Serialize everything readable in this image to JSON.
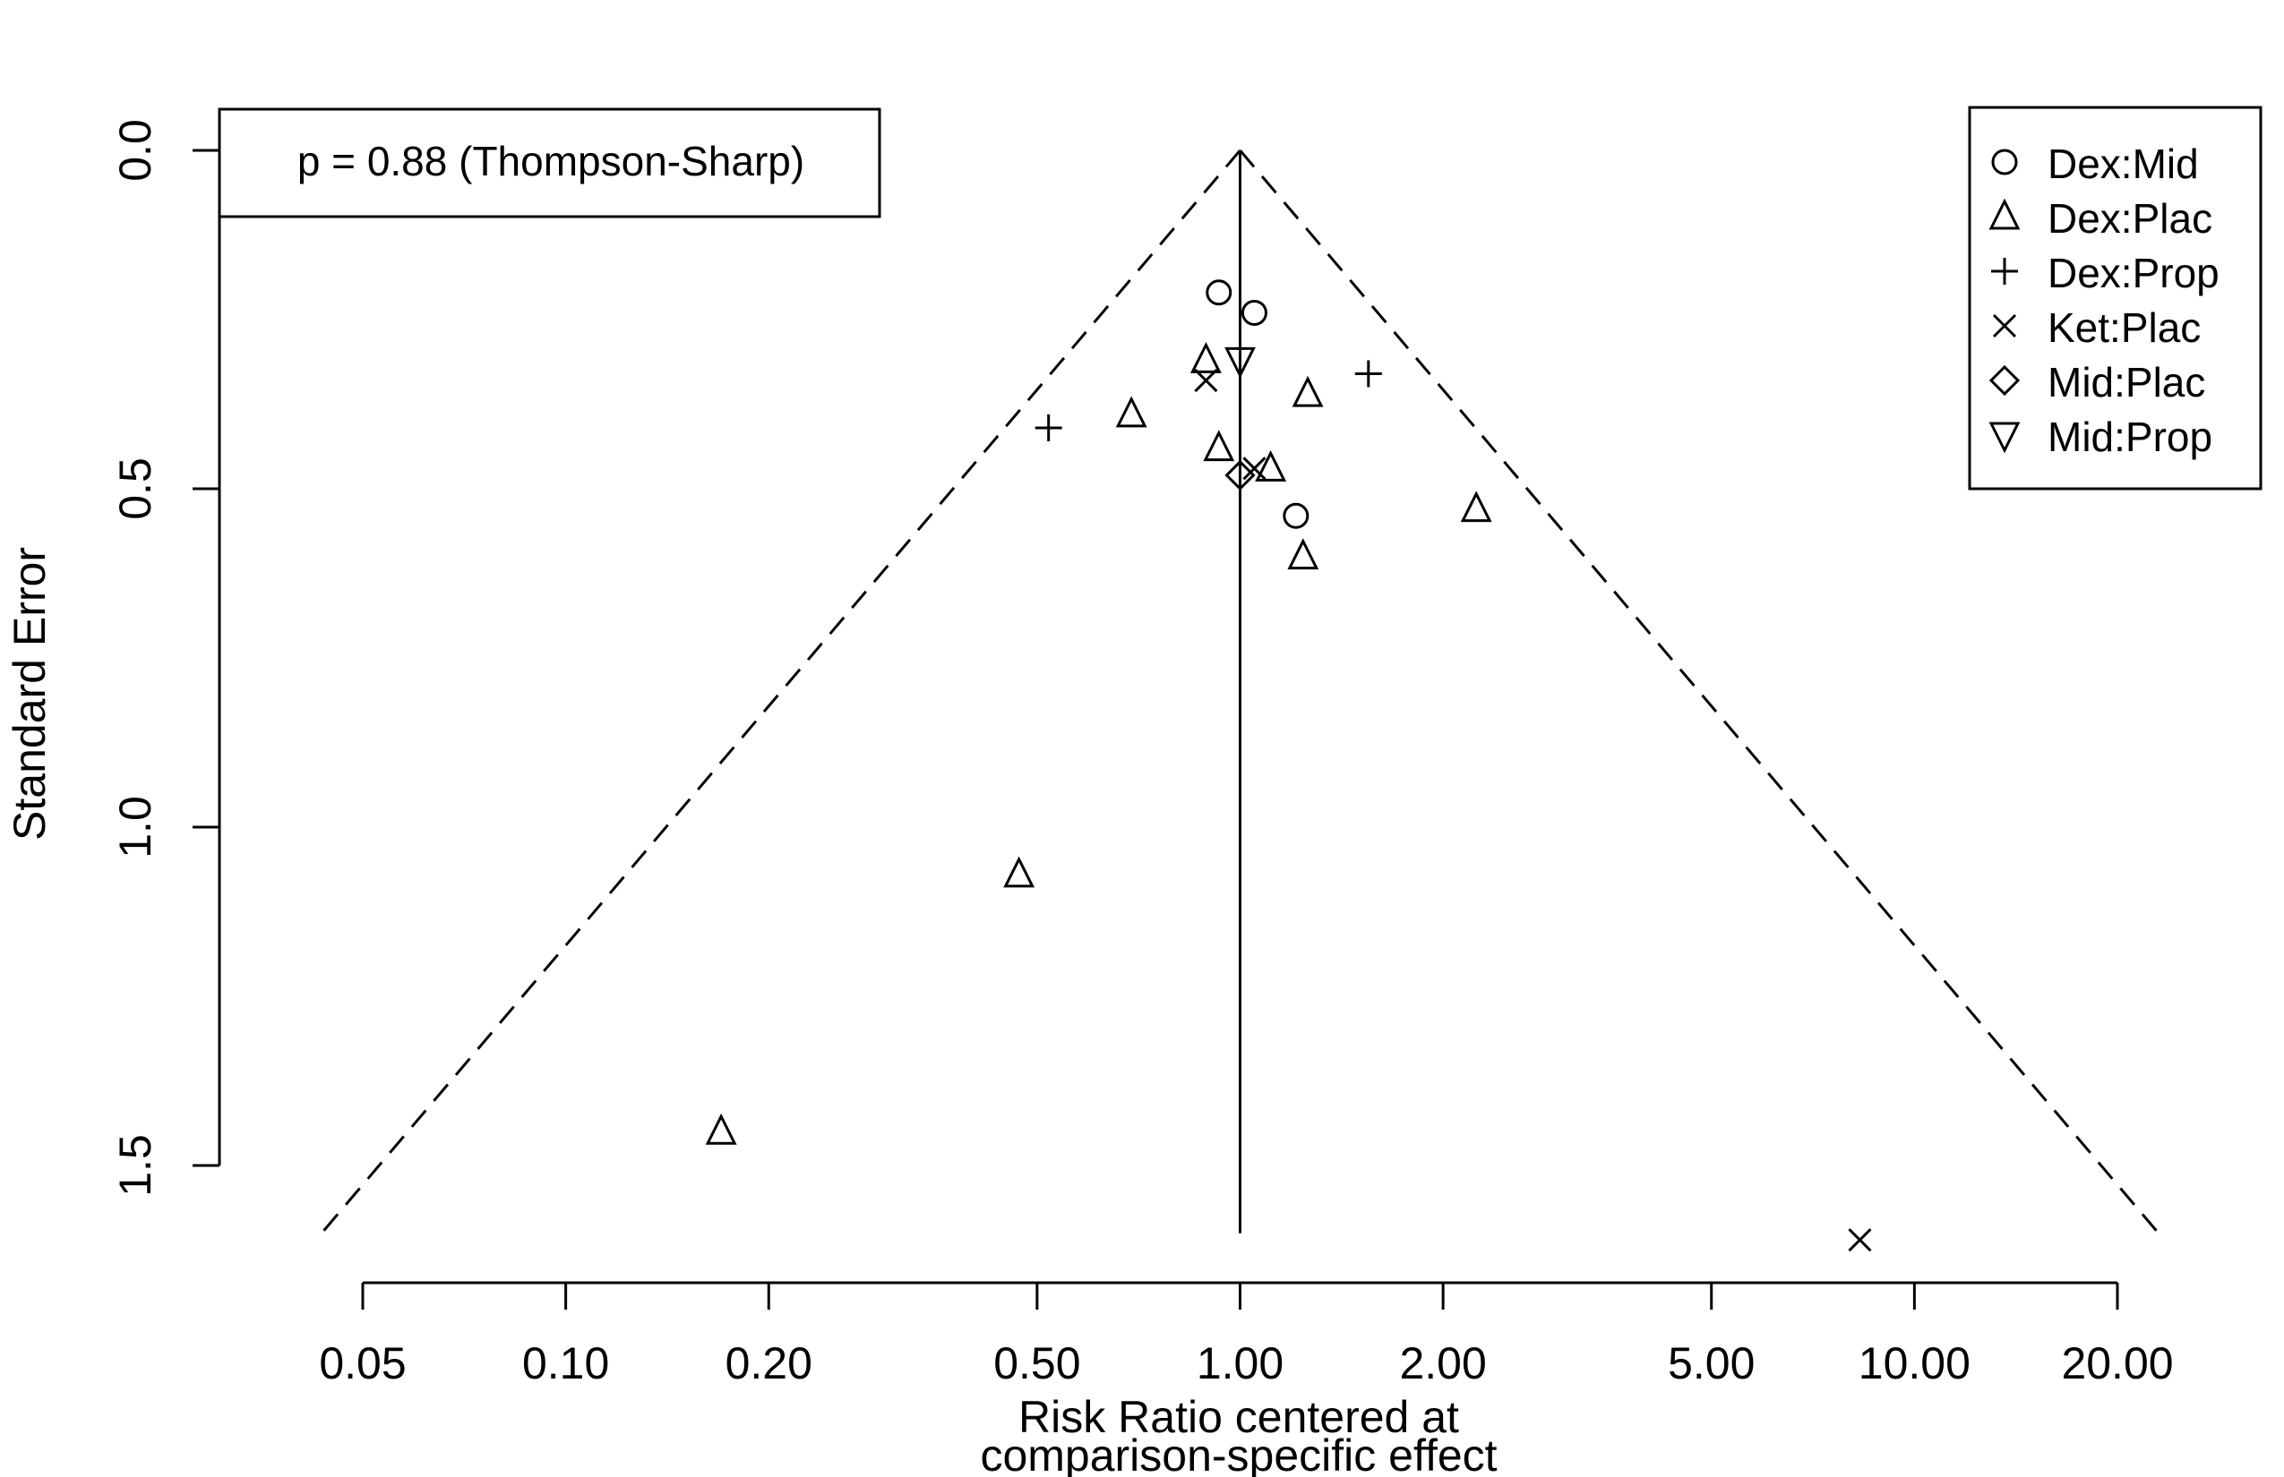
{
  "chart_data": {
    "type": "scatter",
    "title": "",
    "xlabel": "Risk Ratio centered at",
    "xlabel_line2": "comparison-specific effect",
    "ylabel": "Standard Error",
    "x_scale": "log",
    "y_reversed": true,
    "xlim": [
      0.04,
      25
    ],
    "ylim": [
      0,
      1.6
    ],
    "x_ticks": [
      0.05,
      0.1,
      0.2,
      0.5,
      1,
      2,
      5,
      10,
      20
    ],
    "x_tick_labels": [
      "0.05",
      "0.10",
      "0.20",
      "0.50",
      "1.00",
      "2.00",
      "5.00",
      "10.00",
      "20.00"
    ],
    "y_ticks": [
      0,
      0.5,
      1,
      1.5
    ],
    "y_tick_labels": [
      "0.0",
      "0.5",
      "1.0",
      "1.5"
    ],
    "funnel_center": 1.0,
    "funnel_max_se": 1.6,
    "annotation": "p = 0.88 (Thompson-Sharp)",
    "legend_position": "top-right",
    "series": [
      {
        "name": "Dex:Mid",
        "marker": "circle",
        "points": [
          [
            0.93,
            0.21
          ],
          [
            1.05,
            0.24
          ],
          [
            1.21,
            0.54
          ]
        ]
      },
      {
        "name": "Dex:Plac",
        "marker": "triangle-up",
        "points": [
          [
            0.89,
            0.31
          ],
          [
            1.26,
            0.36
          ],
          [
            0.69,
            0.39
          ],
          [
            0.93,
            0.44
          ],
          [
            1.11,
            0.47
          ],
          [
            1.24,
            0.6
          ],
          [
            2.24,
            0.53
          ],
          [
            0.47,
            1.07
          ],
          [
            0.17,
            1.45
          ]
        ]
      },
      {
        "name": "Dex:Prop",
        "marker": "plus",
        "points": [
          [
            0.52,
            0.41
          ],
          [
            1.55,
            0.33
          ]
        ]
      },
      {
        "name": "Ket:Plac",
        "marker": "cross",
        "points": [
          [
            0.89,
            0.34
          ],
          [
            1.05,
            0.47
          ],
          [
            8.3,
            1.61
          ]
        ]
      },
      {
        "name": "Mid:Plac",
        "marker": "diamond",
        "points": [
          [
            1.0,
            0.48
          ]
        ]
      },
      {
        "name": "Mid:Prop",
        "marker": "triangle-down",
        "points": [
          [
            1.0,
            0.31
          ]
        ]
      }
    ]
  }
}
